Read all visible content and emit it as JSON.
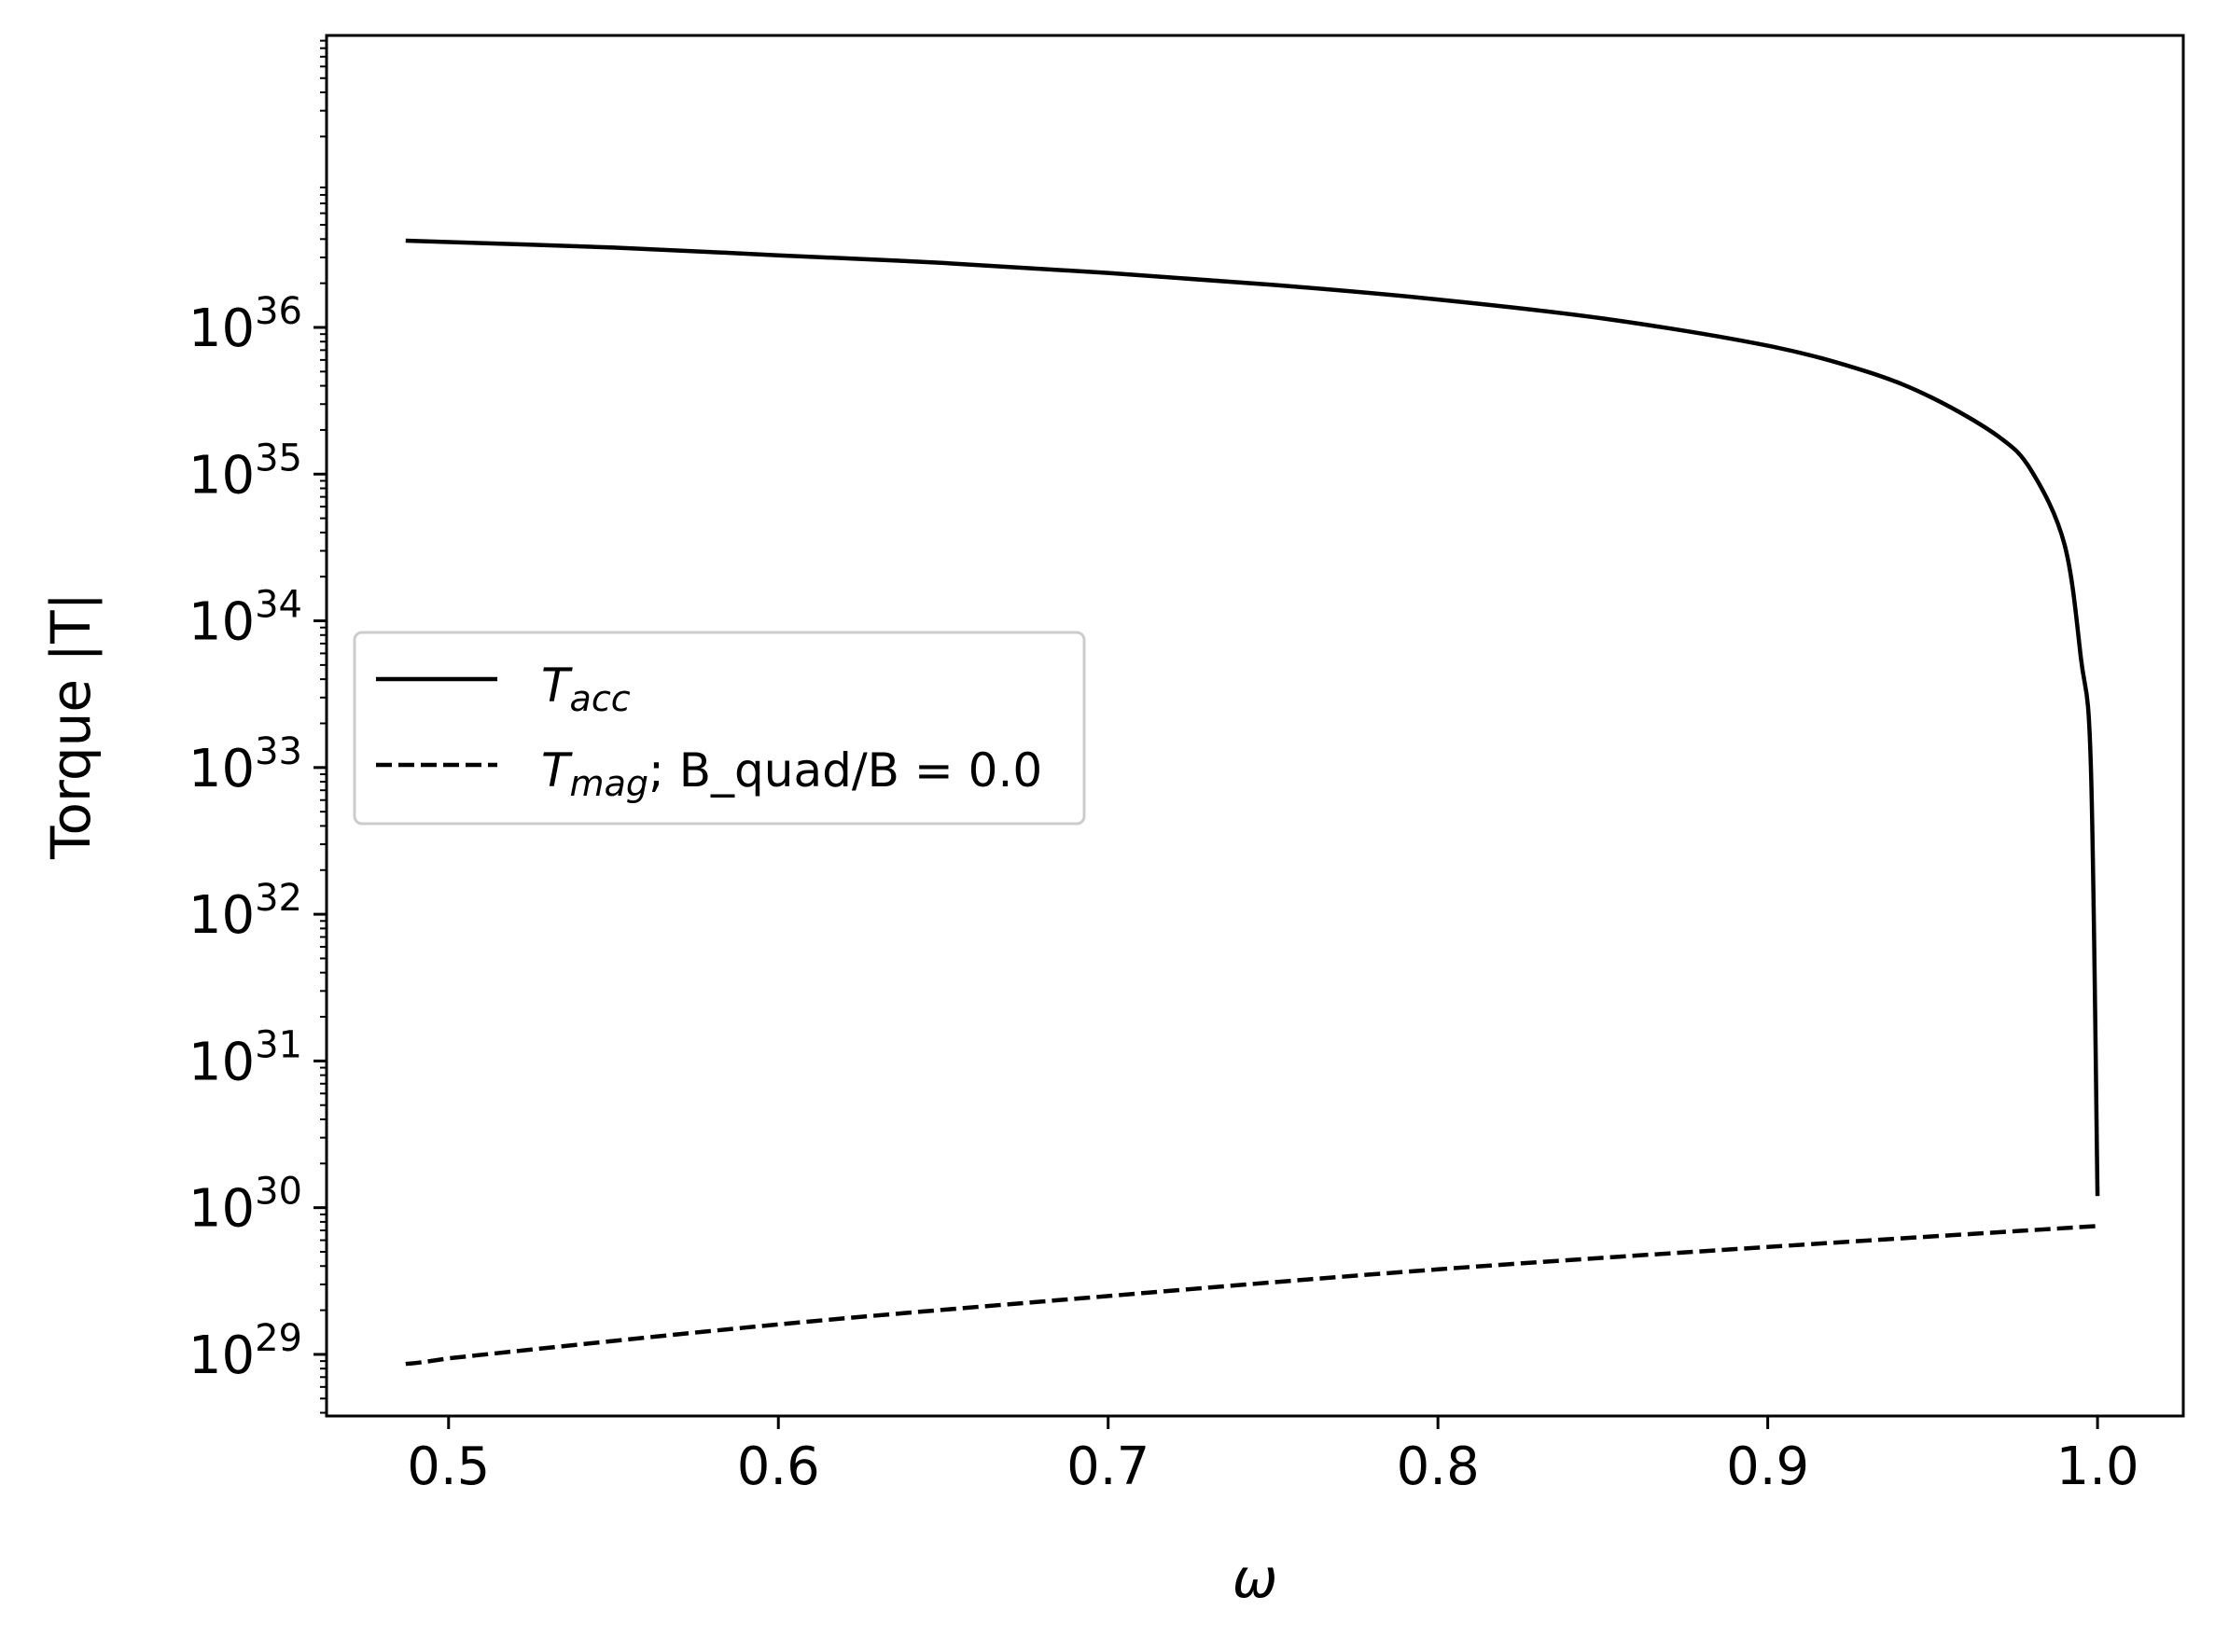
{
  "chart_data": {
    "type": "line",
    "title": "",
    "xlabel": "ω",
    "ylabel": "Torque |T|",
    "xscale": "linear",
    "yscale": "log",
    "xlim": [
      0.463,
      1.026
    ],
    "ylim_log10": [
      28.58,
      37.99
    ],
    "xticks": [
      0.5,
      0.6,
      0.7,
      0.8,
      0.9,
      1.0
    ],
    "xtick_labels": [
      "0.5",
      "0.6",
      "0.7",
      "0.8",
      "0.9",
      "1.0"
    ],
    "yticks_log10": [
      29,
      30,
      31,
      32,
      33,
      34,
      35,
      36
    ],
    "ytick_labels": [
      {
        "base": "10",
        "exp": "29"
      },
      {
        "base": "10",
        "exp": "30"
      },
      {
        "base": "10",
        "exp": "31"
      },
      {
        "base": "10",
        "exp": "32"
      },
      {
        "base": "10",
        "exp": "33"
      },
      {
        "base": "10",
        "exp": "34"
      },
      {
        "base": "10",
        "exp": "35"
      },
      {
        "base": "10",
        "exp": "36"
      }
    ],
    "grid": false,
    "legend_position": "center-left",
    "series": [
      {
        "key": "t-acc",
        "legend": {
          "main": "T",
          "sub": "acc",
          "rest": ""
        },
        "style": "solid",
        "color": "#000000",
        "points": [
          [
            0.487,
            3.9e+36
          ],
          [
            0.55,
            3.5e+36
          ],
          [
            0.6,
            3.1e+36
          ],
          [
            0.65,
            2.75e+36
          ],
          [
            0.7,
            2.35e+36
          ],
          [
            0.75,
            1.95e+36
          ],
          [
            0.8,
            1.55e+36
          ],
          [
            0.85,
            1.15e+36
          ],
          [
            0.9,
            7.5e+35
          ],
          [
            0.93,
            5e+35
          ],
          [
            0.95,
            3.3e+35
          ],
          [
            0.97,
            1.8e+35
          ],
          [
            0.98,
            1.05e+35
          ],
          [
            0.99,
            3.3e+34
          ],
          [
            0.995,
            5.5e+33
          ],
          [
            0.998,
            1e+33
          ],
          [
            1.0,
            1.2e+30
          ]
        ]
      },
      {
        "key": "t-mag",
        "legend": {
          "main": "T",
          "sub": "mag",
          "rest": "; B_quad/B = 0.0"
        },
        "style": "dashed",
        "color": "#000000",
        "points": [
          [
            0.487,
            8.6e+28
          ],
          [
            0.5,
            9.4e+28
          ],
          [
            0.6,
            1.6e+29
          ],
          [
            0.7,
            2.5e+29
          ],
          [
            0.8,
            3.8e+29
          ],
          [
            0.9,
            5.4e+29
          ],
          [
            1.0,
            7.5e+29
          ]
        ]
      }
    ]
  }
}
